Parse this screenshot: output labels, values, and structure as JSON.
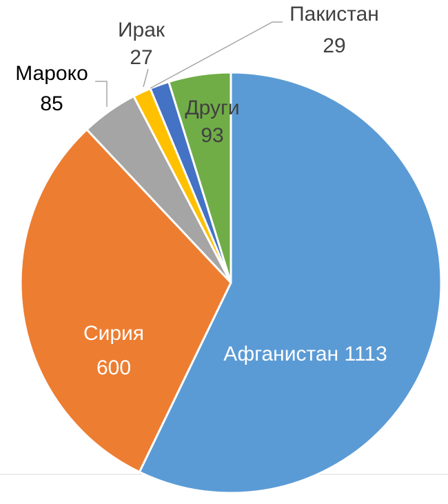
{
  "chart_data": {
    "type": "pie",
    "categories": [
      "Афганистан",
      "Сирия",
      "Мароко",
      "Ирак",
      "Пакистан",
      "Други"
    ],
    "values": [
      1113,
      600,
      85,
      27,
      29,
      93
    ],
    "colors": [
      "#5b9bd5",
      "#ed7d31",
      "#a5a5a5",
      "#ffc000",
      "#4472c4",
      "#70ad47"
    ]
  }
}
